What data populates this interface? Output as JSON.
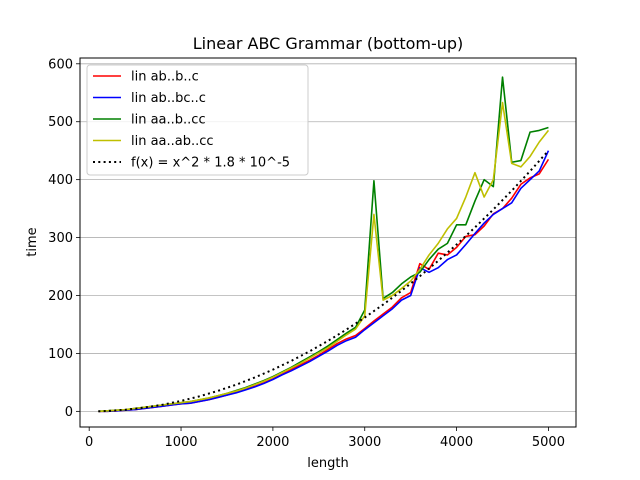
{
  "chart_data": {
    "type": "line",
    "title": "Linear ABC Grammar (bottom-up)",
    "xlabel": "length",
    "ylabel": "time",
    "xlim": [
      -100,
      5300
    ],
    "ylim": [
      -27,
      610
    ],
    "xticks": [
      0,
      1000,
      2000,
      3000,
      4000,
      5000
    ],
    "yticks": [
      0,
      100,
      200,
      300,
      400,
      500,
      600
    ],
    "grid": "y",
    "legend_position": "top-left",
    "series": [
      {
        "name": "lin ab..b..c",
        "color": "#ff0000",
        "style": "solid",
        "x": [
          100,
          200,
          300,
          400,
          500,
          600,
          700,
          800,
          900,
          1000,
          1100,
          1200,
          1300,
          1400,
          1500,
          1600,
          1700,
          1800,
          1900,
          2000,
          2100,
          2200,
          2300,
          2400,
          2500,
          2600,
          2700,
          2800,
          2900,
          3000,
          3100,
          3200,
          3300,
          3400,
          3500,
          3600,
          3700,
          3800,
          3900,
          4000,
          4100,
          4200,
          4300,
          4400,
          4500,
          4600,
          4700,
          4800,
          4900,
          5000
        ],
        "y": [
          0,
          0,
          1,
          2,
          3,
          5,
          7,
          9,
          11,
          13,
          14,
          17,
          20,
          24,
          28,
          33,
          38,
          43,
          49,
          56,
          64,
          72,
          80,
          88,
          97,
          107,
          117,
          125,
          131,
          143,
          156,
          168,
          180,
          196,
          205,
          255,
          245,
          273,
          270,
          283,
          302,
          305,
          320,
          341,
          350,
          368,
          392,
          403,
          410,
          435
        ]
      },
      {
        "name": "lin ab..bc..c",
        "color": "#0000ff",
        "style": "solid",
        "x": [
          100,
          200,
          300,
          400,
          500,
          600,
          700,
          800,
          900,
          1000,
          1100,
          1200,
          1300,
          1400,
          1500,
          1600,
          1700,
          1800,
          1900,
          2000,
          2100,
          2200,
          2300,
          2400,
          2500,
          2600,
          2700,
          2800,
          2900,
          3000,
          3100,
          3200,
          3300,
          3400,
          3500,
          3600,
          3700,
          3800,
          3900,
          4000,
          4100,
          4200,
          4300,
          4400,
          4500,
          4600,
          4700,
          4800,
          4900,
          5000
        ],
        "y": [
          0,
          0,
          1,
          2,
          3,
          5,
          7,
          9,
          11,
          13,
          14,
          17,
          20,
          24,
          28,
          32,
          37,
          42,
          48,
          55,
          63,
          70,
          78,
          86,
          95,
          104,
          114,
          122,
          128,
          141,
          153,
          165,
          177,
          192,
          200,
          248,
          240,
          248,
          262,
          270,
          288,
          307,
          325,
          340,
          350,
          360,
          385,
          400,
          415,
          450
        ]
      },
      {
        "name": "lin aa..b..cc",
        "color": "#008000",
        "style": "solid",
        "x": [
          100,
          200,
          300,
          400,
          500,
          600,
          700,
          800,
          900,
          1000,
          1100,
          1200,
          1300,
          1400,
          1500,
          1600,
          1700,
          1800,
          1900,
          2000,
          2100,
          2200,
          2300,
          2400,
          2500,
          2600,
          2700,
          2800,
          2900,
          3000,
          3100,
          3200,
          3300,
          3400,
          3500,
          3600,
          3700,
          3800,
          3900,
          4000,
          4100,
          4200,
          4300,
          4400,
          4500,
          4600,
          4700,
          4800,
          4900,
          5000
        ],
        "y": [
          0,
          1,
          2,
          3,
          5,
          7,
          9,
          11,
          13,
          15,
          17,
          20,
          23,
          27,
          31,
          36,
          41,
          47,
          53,
          60,
          68,
          76,
          85,
          94,
          103,
          113,
          124,
          135,
          145,
          175,
          398,
          195,
          205,
          220,
          232,
          240,
          262,
          280,
          290,
          322,
          322,
          363,
          400,
          388,
          577,
          430,
          433,
          482,
          485,
          490
        ]
      },
      {
        "name": "lin aa..ab..cc",
        "color": "#bfbf00",
        "style": "solid",
        "x": [
          100,
          200,
          300,
          400,
          500,
          600,
          700,
          800,
          900,
          1000,
          1100,
          1200,
          1300,
          1400,
          1500,
          1600,
          1700,
          1800,
          1900,
          2000,
          2100,
          2200,
          2300,
          2400,
          2500,
          2600,
          2700,
          2800,
          2900,
          3000,
          3100,
          3200,
          3300,
          3400,
          3500,
          3600,
          3700,
          3800,
          3900,
          4000,
          4100,
          4200,
          4300,
          4400,
          4500,
          4600,
          4700,
          4800,
          4900,
          5000
        ],
        "y": [
          0,
          1,
          2,
          3,
          5,
          7,
          9,
          11,
          13,
          15,
          17,
          20,
          23,
          27,
          31,
          35,
          40,
          46,
          52,
          59,
          67,
          75,
          83,
          92,
          101,
          110,
          121,
          132,
          142,
          165,
          340,
          192,
          200,
          212,
          225,
          245,
          270,
          290,
          315,
          333,
          370,
          412,
          370,
          400,
          533,
          428,
          422,
          440,
          465,
          485
        ]
      },
      {
        "name": "f(x) = x^2 * 1.8 * 10^-5",
        "color": "#000000",
        "style": "dotted",
        "x": [
          100,
          200,
          400,
          600,
          800,
          1000,
          1200,
          1400,
          1600,
          1800,
          2000,
          2200,
          2400,
          2600,
          2800,
          3000,
          3200,
          3400,
          3600,
          3800,
          4000,
          4200,
          4400,
          4600,
          4800,
          5000
        ],
        "y": [
          0.18,
          0.72,
          2.88,
          6.48,
          11.52,
          18,
          25.92,
          35.28,
          46.08,
          58.32,
          72,
          87.12,
          103.68,
          121.68,
          141.12,
          162,
          184.32,
          208.08,
          233.28,
          259.92,
          288,
          317.52,
          348.48,
          380.88,
          414.72,
          450
        ]
      }
    ]
  }
}
